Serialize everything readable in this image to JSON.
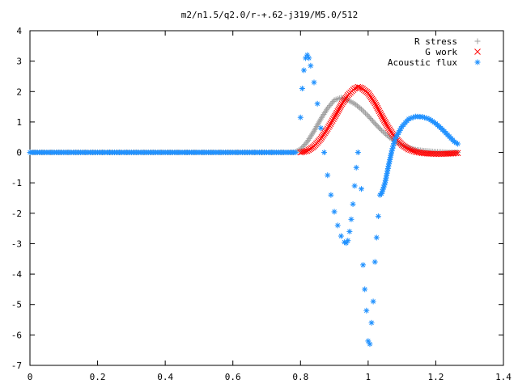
{
  "chart_data": {
    "type": "scatter",
    "title": "m2/n1.5/q2.0/r-+.62-j319/M5.0/512",
    "xlabel": "",
    "ylabel": "",
    "xlim": [
      0,
      1.4
    ],
    "ylim": [
      -7,
      4
    ],
    "x_ticks": [
      "0",
      "0.2",
      "0.4",
      "0.6",
      "0.8",
      "1",
      "1.2",
      "1.4"
    ],
    "y_ticks": [
      "4",
      "3",
      "2",
      "1",
      "0",
      "-1",
      "-2",
      "-3",
      "-4",
      "-5",
      "-6",
      "-7"
    ],
    "grid": false,
    "legend_position": "top-right",
    "series": [
      {
        "name": "R stress",
        "marker": "+",
        "color": "#a0a0a0",
        "points": [
          [
            0.0,
            0.0
          ],
          [
            0.1,
            0.0
          ],
          [
            0.2,
            0.0
          ],
          [
            0.3,
            0.0
          ],
          [
            0.4,
            0.0
          ],
          [
            0.5,
            0.0
          ],
          [
            0.6,
            0.0
          ],
          [
            0.7,
            0.0
          ],
          [
            0.78,
            0.0
          ],
          [
            0.8,
            0.1
          ],
          [
            0.82,
            0.35
          ],
          [
            0.84,
            0.7
          ],
          [
            0.86,
            1.1
          ],
          [
            0.88,
            1.45
          ],
          [
            0.9,
            1.72
          ],
          [
            0.92,
            1.8
          ],
          [
            0.94,
            1.72
          ],
          [
            0.96,
            1.6
          ],
          [
            0.98,
            1.42
          ],
          [
            1.0,
            1.2
          ],
          [
            1.02,
            0.95
          ],
          [
            1.04,
            0.72
          ],
          [
            1.06,
            0.52
          ],
          [
            1.08,
            0.36
          ],
          [
            1.1,
            0.24
          ],
          [
            1.12,
            0.15
          ],
          [
            1.14,
            0.09
          ],
          [
            1.16,
            0.06
          ],
          [
            1.18,
            0.04
          ],
          [
            1.2,
            0.02
          ],
          [
            1.22,
            0.01
          ],
          [
            1.24,
            0.0
          ],
          [
            1.265,
            0.0
          ]
        ]
      },
      {
        "name": "G work",
        "marker": "x",
        "color": "#ff0000",
        "points": [
          [
            0.8,
            0.0
          ],
          [
            0.82,
            0.05
          ],
          [
            0.84,
            0.2
          ],
          [
            0.86,
            0.45
          ],
          [
            0.88,
            0.78
          ],
          [
            0.9,
            1.15
          ],
          [
            0.92,
            1.55
          ],
          [
            0.94,
            1.88
          ],
          [
            0.96,
            2.1
          ],
          [
            0.97,
            2.15
          ],
          [
            0.98,
            2.12
          ],
          [
            1.0,
            1.95
          ],
          [
            1.02,
            1.62
          ],
          [
            1.04,
            1.2
          ],
          [
            1.06,
            0.8
          ],
          [
            1.08,
            0.48
          ],
          [
            1.1,
            0.25
          ],
          [
            1.12,
            0.1
          ],
          [
            1.14,
            0.02
          ],
          [
            1.16,
            -0.02
          ],
          [
            1.18,
            -0.04
          ],
          [
            1.2,
            -0.05
          ],
          [
            1.22,
            -0.05
          ],
          [
            1.24,
            -0.04
          ],
          [
            1.265,
            -0.02
          ]
        ]
      },
      {
        "name": "Acoustic flux",
        "marker": "*",
        "color": "#1e90ff",
        "points": [
          [
            0.0,
            0.0
          ],
          [
            0.1,
            0.0
          ],
          [
            0.2,
            0.0
          ],
          [
            0.3,
            0.0
          ],
          [
            0.4,
            0.0
          ],
          [
            0.5,
            0.0
          ],
          [
            0.6,
            0.0
          ],
          [
            0.7,
            0.0
          ],
          [
            0.785,
            0.0
          ],
          [
            0.8,
            1.15
          ],
          [
            0.805,
            2.1
          ],
          [
            0.81,
            2.7
          ],
          [
            0.815,
            3.1
          ],
          [
            0.82,
            3.2
          ],
          [
            0.825,
            3.1
          ],
          [
            0.83,
            2.85
          ],
          [
            0.84,
            2.3
          ],
          [
            0.85,
            1.6
          ],
          [
            0.86,
            0.8
          ],
          [
            0.87,
            0.0
          ],
          [
            0.88,
            -0.75
          ],
          [
            0.89,
            -1.4
          ],
          [
            0.9,
            -1.95
          ],
          [
            0.91,
            -2.4
          ],
          [
            0.92,
            -2.75
          ],
          [
            0.93,
            -2.95
          ],
          [
            0.935,
            -2.98
          ],
          [
            0.94,
            -2.9
          ],
          [
            0.945,
            -2.6
          ],
          [
            0.95,
            -2.2
          ],
          [
            0.955,
            -1.7
          ],
          [
            0.96,
            -1.1
          ],
          [
            0.965,
            -0.5
          ],
          [
            0.97,
            0.0
          ],
          [
            0.98,
            -1.2
          ],
          [
            0.985,
            -3.7
          ],
          [
            0.99,
            -4.5
          ],
          [
            0.995,
            -5.2
          ],
          [
            1.0,
            -6.2
          ],
          [
            1.005,
            -6.3
          ],
          [
            1.01,
            -5.6
          ],
          [
            1.015,
            -4.9
          ],
          [
            1.02,
            -3.6
          ],
          [
            1.025,
            -2.8
          ],
          [
            1.03,
            -2.1
          ],
          [
            1.035,
            -1.4
          ],
          [
            1.04,
            -1.35
          ],
          [
            1.05,
            -1.0
          ],
          [
            1.06,
            -0.45
          ],
          [
            1.07,
            0.05
          ],
          [
            1.08,
            0.45
          ],
          [
            1.1,
            0.85
          ],
          [
            1.12,
            1.1
          ],
          [
            1.14,
            1.18
          ],
          [
            1.16,
            1.17
          ],
          [
            1.18,
            1.1
          ],
          [
            1.2,
            0.95
          ],
          [
            1.22,
            0.75
          ],
          [
            1.24,
            0.52
          ],
          [
            1.255,
            0.35
          ],
          [
            1.265,
            0.28
          ]
        ]
      }
    ]
  }
}
